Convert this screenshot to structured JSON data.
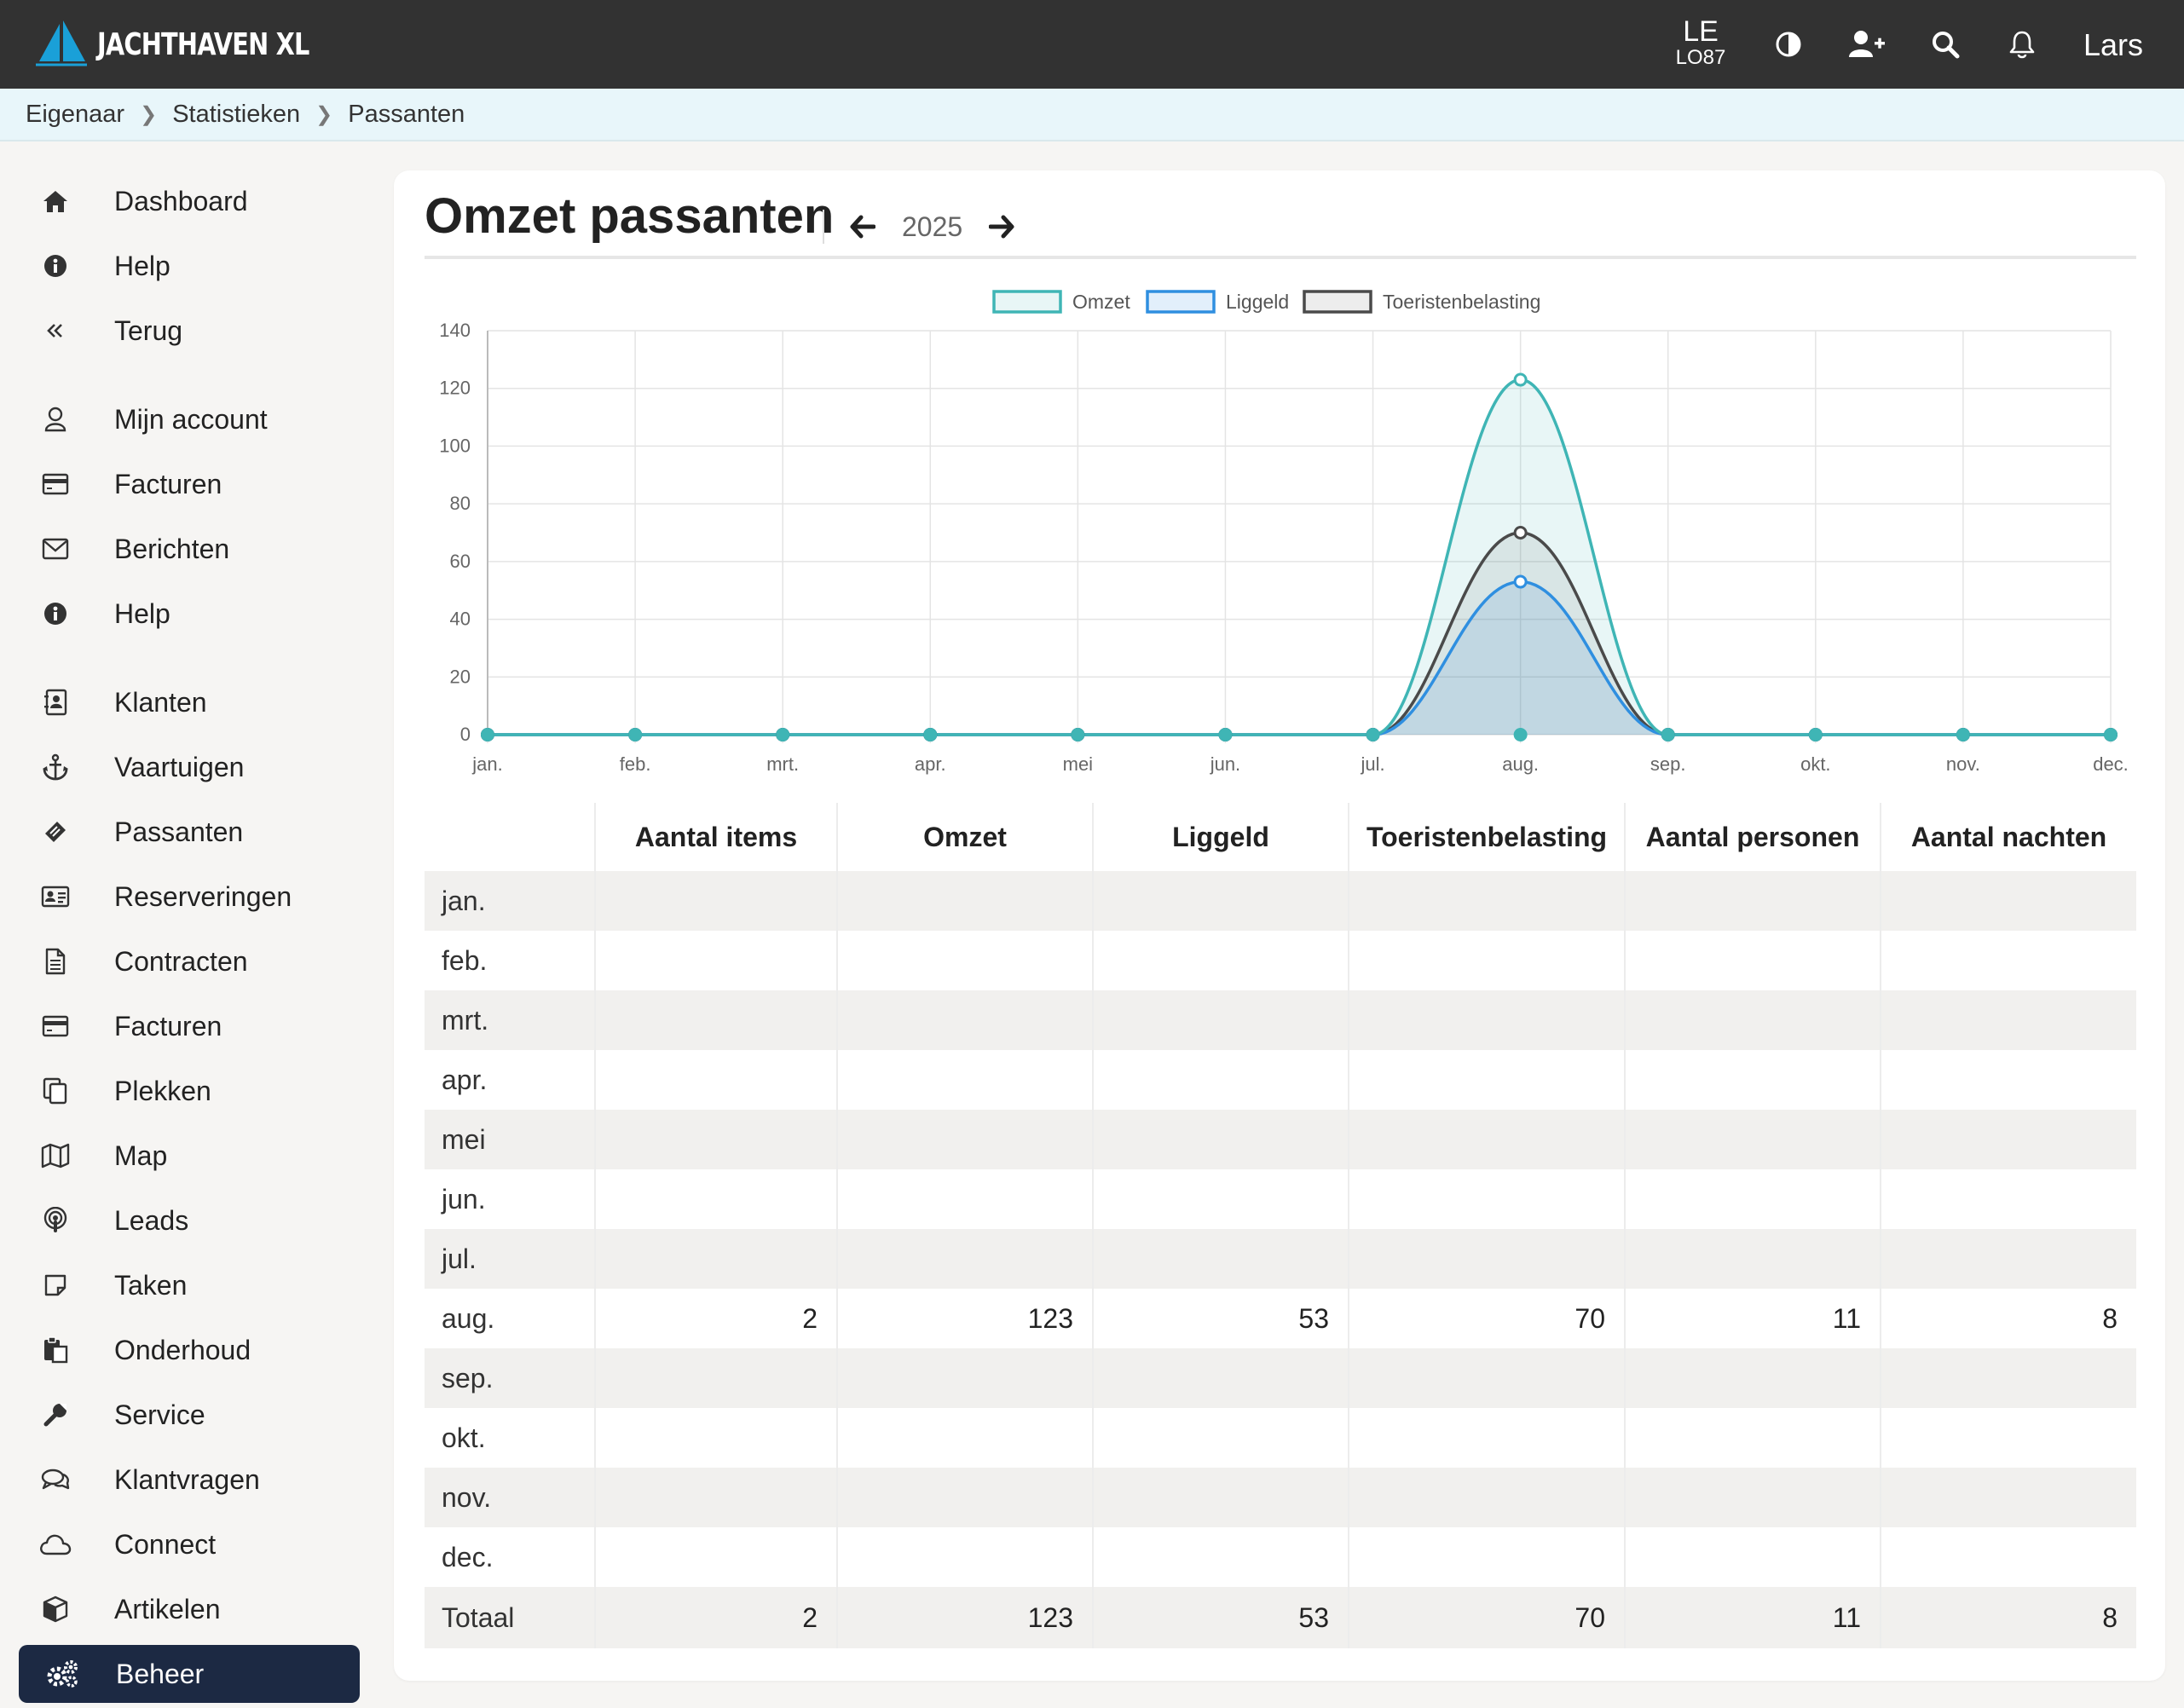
{
  "app": {
    "brand": "JACHTHAVEN XL",
    "user_code_top": "LE",
    "user_code_bottom": "LO87",
    "user_name": "Lars",
    "icons": [
      "contrast-icon",
      "add-user-icon",
      "search-icon",
      "bell-icon"
    ]
  },
  "breadcrumb": [
    "Eigenaar",
    "Statistieken",
    "Passanten"
  ],
  "sidebar": {
    "items": [
      {
        "label": "Dashboard",
        "icon": "home-icon"
      },
      {
        "label": "Help",
        "icon": "info-icon"
      },
      {
        "label": "Terug",
        "icon": "double-chevron-left-icon"
      },
      {
        "label": "Mijn account",
        "icon": "user-icon"
      },
      {
        "label": "Facturen",
        "icon": "credit-card-icon"
      },
      {
        "label": "Berichten",
        "icon": "envelope-icon"
      },
      {
        "label": "Help",
        "icon": "info-icon"
      },
      {
        "label": "Klanten",
        "icon": "address-book-icon"
      },
      {
        "label": "Vaartuigen",
        "icon": "anchor-icon"
      },
      {
        "label": "Passanten",
        "icon": "ticket-icon"
      },
      {
        "label": "Reserveringen",
        "icon": "id-card-icon"
      },
      {
        "label": "Contracten",
        "icon": "file-icon"
      },
      {
        "label": "Facturen",
        "icon": "credit-card-icon"
      },
      {
        "label": "Plekken",
        "icon": "copy-icon"
      },
      {
        "label": "Map",
        "icon": "map-icon"
      },
      {
        "label": "Leads",
        "icon": "podcast-icon"
      },
      {
        "label": "Taken",
        "icon": "sticky-note-icon"
      },
      {
        "label": "Onderhoud",
        "icon": "paste-icon"
      },
      {
        "label": "Service",
        "icon": "wrench-icon"
      },
      {
        "label": "Klantvragen",
        "icon": "comments-icon"
      },
      {
        "label": "Connect",
        "icon": "cloud-icon"
      },
      {
        "label": "Artikelen",
        "icon": "cube-icon"
      },
      {
        "label": "Beheer",
        "icon": "cogs-icon",
        "active": true
      }
    ]
  },
  "page": {
    "title": "Omzet passanten",
    "year": "2025"
  },
  "chart_data": {
    "type": "area",
    "categories": [
      "jan.",
      "feb.",
      "mrt.",
      "apr.",
      "mei",
      "jun.",
      "jul.",
      "aug.",
      "sep.",
      "okt.",
      "nov.",
      "dec."
    ],
    "series": [
      {
        "name": "Omzet",
        "values": [
          0,
          0,
          0,
          0,
          0,
          0,
          0,
          123,
          0,
          0,
          0,
          0
        ],
        "color": "#3fb5b5"
      },
      {
        "name": "Liggeld",
        "values": [
          0,
          0,
          0,
          0,
          0,
          0,
          0,
          53,
          0,
          0,
          0,
          0
        ],
        "color": "#2f8fe0"
      },
      {
        "name": "Toeristenbelasting",
        "values": [
          0,
          0,
          0,
          0,
          0,
          0,
          0,
          70,
          0,
          0,
          0,
          0
        ],
        "color": "#4a4a4a"
      }
    ],
    "yticks": [
      "0",
      "20",
      "40",
      "60",
      "80",
      "100",
      "120",
      "140"
    ],
    "ylim": [
      0,
      140
    ],
    "grid": true,
    "legend": "top-center"
  },
  "table": {
    "headers": [
      "",
      "Aantal items",
      "Omzet",
      "Liggeld",
      "Toeristenbelasting",
      "Aantal personen",
      "Aantal nachten"
    ],
    "rows": [
      [
        "jan.",
        "",
        "",
        "",
        "",
        "",
        ""
      ],
      [
        "feb.",
        "",
        "",
        "",
        "",
        "",
        ""
      ],
      [
        "mrt.",
        "",
        "",
        "",
        "",
        "",
        ""
      ],
      [
        "apr.",
        "",
        "",
        "",
        "",
        "",
        ""
      ],
      [
        "mei",
        "",
        "",
        "",
        "",
        "",
        ""
      ],
      [
        "jun.",
        "",
        "",
        "",
        "",
        "",
        ""
      ],
      [
        "jul.",
        "",
        "",
        "",
        "",
        "",
        ""
      ],
      [
        "aug.",
        "2",
        "123",
        "53",
        "70",
        "11",
        "8"
      ],
      [
        "sep.",
        "",
        "",
        "",
        "",
        "",
        ""
      ],
      [
        "okt.",
        "",
        "",
        "",
        "",
        "",
        ""
      ],
      [
        "nov.",
        "",
        "",
        "",
        "",
        "",
        ""
      ],
      [
        "dec.",
        "",
        "",
        "",
        "",
        "",
        ""
      ]
    ],
    "total": [
      "Totaal",
      "2",
      "123",
      "53",
      "70",
      "11",
      "8"
    ]
  }
}
